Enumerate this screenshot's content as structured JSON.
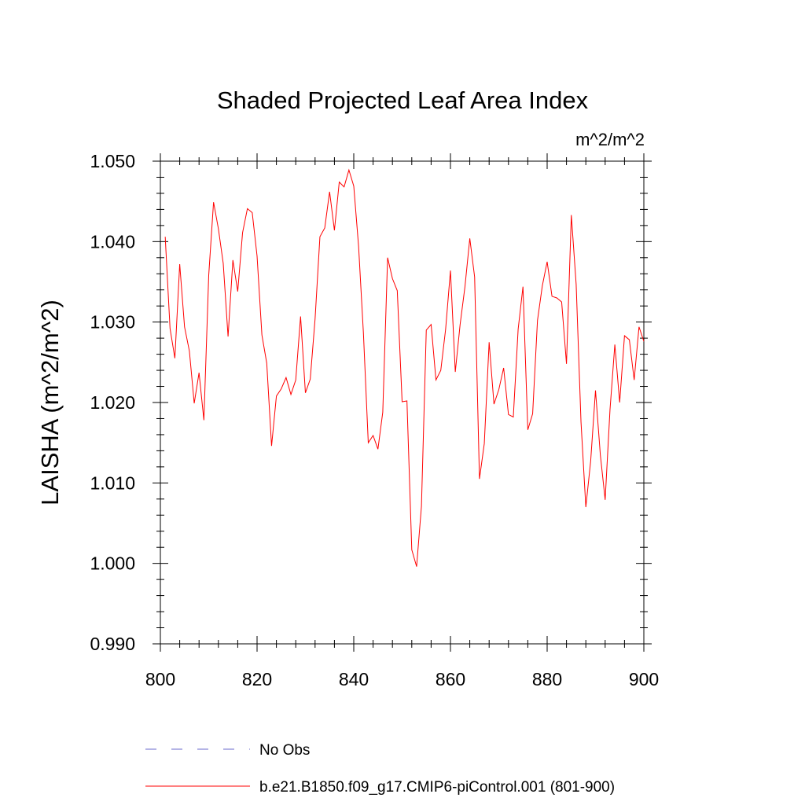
{
  "chart_data": {
    "type": "line",
    "title": "Shaded Projected Leaf Area Index",
    "units_label": "m^2/m^2",
    "ylabel": "LAISHA  (m^2/m^2)",
    "xlabel": "",
    "xlim": [
      800,
      900
    ],
    "ylim": [
      0.99,
      1.05
    ],
    "x_ticks": [
      800,
      820,
      840,
      860,
      880,
      900
    ],
    "x_tick_labels": [
      "800",
      "820",
      "840",
      "860",
      "880",
      "900"
    ],
    "y_ticks": [
      0.99,
      1.0,
      1.01,
      1.02,
      1.03,
      1.04,
      1.05
    ],
    "y_tick_labels": [
      "0.990",
      "1.000",
      "1.010",
      "1.020",
      "1.030",
      "1.040",
      "1.050"
    ],
    "grid": false,
    "legend_placement": "below",
    "series": [
      {
        "name": "b.e21.B1850.f09_g17.CMIP6-piControl.001 (801-900)",
        "color": "#ff0000",
        "style": "solid",
        "x": [
          801,
          802,
          803,
          804,
          805,
          806,
          807,
          808,
          809,
          810,
          811,
          812,
          813,
          814,
          815,
          816,
          817,
          818,
          819,
          820,
          821,
          822,
          823,
          824,
          825,
          826,
          827,
          828,
          829,
          830,
          831,
          832,
          833,
          834,
          835,
          836,
          837,
          838,
          839,
          840,
          841,
          842,
          843,
          844,
          845,
          846,
          847,
          848,
          849,
          850,
          851,
          852,
          853,
          854,
          855,
          856,
          857,
          858,
          859,
          860,
          861,
          862,
          863,
          864,
          865,
          866,
          867,
          868,
          869,
          870,
          871,
          872,
          873,
          874,
          875,
          876,
          877,
          878,
          879,
          880,
          881,
          882,
          883,
          884,
          885,
          886,
          887,
          888,
          889,
          890,
          891,
          892,
          893,
          894,
          895,
          896,
          897,
          898,
          899,
          900
        ],
        "values": [
          1.0406,
          1.0292,
          1.0255,
          1.0372,
          1.0294,
          1.0264,
          1.0199,
          1.0237,
          1.0178,
          1.0358,
          1.0449,
          1.0416,
          1.0373,
          1.0282,
          1.0377,
          1.0338,
          1.0411,
          1.0441,
          1.0436,
          1.0382,
          1.0284,
          1.0249,
          1.0146,
          1.0208,
          1.0217,
          1.0231,
          1.021,
          1.0228,
          1.0307,
          1.0212,
          1.0229,
          1.0304,
          1.0406,
          1.0417,
          1.0462,
          1.0414,
          1.0474,
          1.0468,
          1.0489,
          1.0469,
          1.0394,
          1.0286,
          1.015,
          1.0159,
          1.0142,
          1.0188,
          1.038,
          1.0354,
          1.0339,
          1.0201,
          1.0202,
          1.0017,
          0.9996,
          1.0071,
          1.029,
          1.0297,
          1.0228,
          1.024,
          1.0291,
          1.0364,
          1.0238,
          1.0297,
          1.0344,
          1.0404,
          1.0356,
          1.0105,
          1.0149,
          1.0275,
          1.0198,
          1.0216,
          1.0243,
          1.0185,
          1.0182,
          1.0291,
          1.0344,
          1.0166,
          1.0186,
          1.0302,
          1.0345,
          1.0375,
          1.0332,
          1.033,
          1.0325,
          1.0248,
          1.0433,
          1.0347,
          1.0176,
          1.007,
          1.0127,
          1.0215,
          1.0135,
          1.0079,
          1.0191,
          1.0272,
          1.02,
          1.0283,
          1.0278,
          1.0228,
          1.0294,
          1.0276
        ]
      }
    ],
    "legend": [
      {
        "label": "No Obs",
        "color": "#6a6acd",
        "style": "dashed"
      },
      {
        "label": "b.e21.B1850.f09_g17.CMIP6-piControl.001 (801-900)",
        "color": "#ff0000",
        "style": "solid"
      }
    ]
  }
}
